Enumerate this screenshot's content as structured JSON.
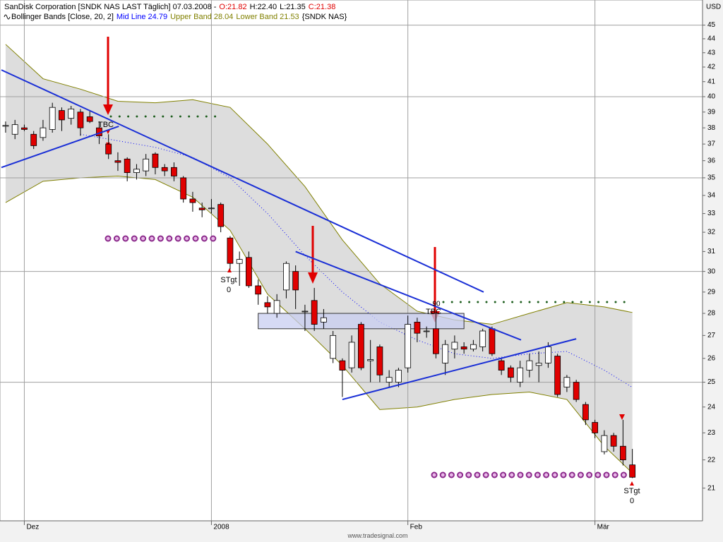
{
  "chart_data": {
    "type": "candlestick",
    "header": [
      {
        "text": "SanDisk Corporation [SNDK NAS LAST Täglich] 07.03.2008 -",
        "color": "#000000"
      },
      {
        "text": "O:21.82",
        "color": "#e00000"
      },
      {
        "text": "H:22.40",
        "color": "#000000"
      },
      {
        "text": "L:21.35",
        "color": "#000000"
      },
      {
        "text": "C:21.38",
        "color": "#e00000"
      }
    ],
    "indicator": [
      {
        "text": "Bollinger Bands [Close, 20, 2]",
        "color": "#000000"
      },
      {
        "text": "Mid Line 24.79",
        "color": "#0000ff"
      },
      {
        "text": "Upper Band 28.04",
        "color": "#808000"
      },
      {
        "text": "Lower Band 21.53",
        "color": "#808000"
      },
      {
        "text": "{SNDK NAS}",
        "color": "#000000"
      }
    ],
    "unit": "USD",
    "footer": "www.tradesignal.com",
    "log_scale": true,
    "ylim": [
      19.9,
      46.9
    ],
    "yticks": [
      21,
      22,
      23,
      24,
      25,
      26,
      27,
      28,
      29,
      30,
      31,
      32,
      33,
      34,
      35,
      36,
      37,
      38,
      39,
      40,
      41,
      42,
      43,
      44,
      45
    ],
    "ygrid": [
      25,
      30,
      35,
      40,
      45
    ],
    "xlim": [
      -0.6,
      74.5
    ],
    "categories": [
      null,
      null,
      "Dez",
      null,
      null,
      null,
      null,
      null,
      null,
      null,
      null,
      null,
      null,
      null,
      null,
      null,
      null,
      null,
      null,
      null,
      null,
      null,
      "2008",
      null,
      null,
      null,
      null,
      null,
      null,
      null,
      null,
      null,
      null,
      null,
      null,
      null,
      null,
      null,
      null,
      null,
      null,
      null,
      null,
      "Feb",
      null,
      null,
      null,
      null,
      null,
      null,
      null,
      null,
      null,
      null,
      null,
      null,
      null,
      null,
      null,
      null,
      null,
      null,
      null,
      "Mär",
      null,
      null,
      null,
      null
    ],
    "open": [
      38.1,
      37.6,
      38.0,
      37.6,
      37.4,
      37.9,
      39.1,
      38.6,
      39.0,
      38.7,
      38.0,
      37.0,
      36.0,
      36.1,
      35.3,
      35.4,
      36.4,
      35.6,
      35.6,
      35.0,
      33.8,
      33.3,
      33.3,
      33.5,
      31.7,
      30.4,
      30.7,
      29.3,
      28.5,
      28.0,
      29.1,
      30.0,
      28.1,
      28.6,
      27.6,
      26.0,
      25.9,
      25.6,
      27.5,
      25.9,
      26.5,
      25.0,
      25.0,
      25.6,
      27.6,
      27.2,
      27.3,
      25.8,
      26.4,
      26.5,
      26.4,
      26.5,
      27.3,
      25.9,
      25.6,
      25.0,
      25.5,
      25.7,
      25.8,
      26.1,
      24.8,
      25.0,
      24.1,
      23.4,
      22.3,
      22.9,
      22.5,
      21.82
    ],
    "high": [
      38.4,
      38.5,
      38.2,
      37.8,
      38.5,
      39.6,
      39.3,
      39.4,
      39.2,
      39.1,
      38.4,
      37.6,
      36.5,
      36.2,
      35.8,
      36.4,
      36.5,
      35.8,
      35.9,
      35.1,
      34.2,
      33.6,
      33.8,
      33.6,
      31.8,
      31.0,
      31.0,
      29.6,
      28.8,
      28.9,
      30.5,
      30.3,
      28.4,
      29.2,
      28.2,
      27.2,
      26.0,
      27.0,
      27.6,
      26.8,
      26.6,
      25.5,
      25.6,
      27.9,
      27.8,
      27.4,
      28.0,
      26.8,
      27.0,
      26.7,
      26.8,
      27.3,
      27.4,
      26.0,
      25.7,
      25.9,
      26.2,
      26.3,
      26.7,
      26.2,
      25.3,
      25.1,
      24.2,
      23.5,
      23.1,
      23.0,
      23.5,
      22.4
    ],
    "low": [
      37.7,
      37.3,
      37.8,
      36.7,
      37.2,
      37.7,
      37.8,
      38.2,
      37.5,
      38.3,
      37.0,
      36.1,
      35.4,
      34.8,
      34.9,
      35.1,
      35.2,
      35.1,
      34.8,
      33.6,
      33.1,
      32.8,
      33.0,
      32.0,
      30.1,
      29.3,
      29.2,
      28.4,
      28.0,
      27.8,
      28.7,
      28.2,
      27.2,
      27.2,
      27.3,
      25.8,
      24.4,
      25.4,
      25.5,
      25.0,
      25.0,
      24.8,
      24.8,
      25.4,
      26.7,
      26.9,
      26.0,
      25.3,
      26.0,
      26.2,
      26.3,
      26.3,
      26.1,
      25.3,
      25.0,
      24.8,
      25.2,
      25.0,
      25.6,
      24.4,
      24.6,
      24.2,
      23.3,
      22.8,
      22.2,
      22.3,
      21.8,
      21.35
    ],
    "close": [
      38.15,
      38.2,
      37.9,
      36.9,
      38.0,
      39.3,
      38.5,
      39.2,
      38.0,
      38.4,
      37.5,
      36.4,
      35.9,
      35.3,
      35.5,
      36.1,
      35.6,
      35.4,
      35.1,
      33.8,
      33.6,
      33.2,
      33.3,
      32.3,
      30.4,
      30.6,
      29.3,
      28.9,
      28.3,
      28.6,
      30.4,
      29.1,
      28.1,
      27.5,
      27.8,
      27.0,
      25.5,
      26.7,
      25.6,
      25.95,
      25.3,
      25.2,
      25.5,
      27.5,
      27.1,
      27.2,
      26.2,
      26.6,
      26.7,
      26.4,
      26.6,
      27.2,
      26.2,
      25.5,
      25.2,
      25.6,
      25.9,
      25.8,
      26.5,
      24.5,
      25.2,
      24.3,
      23.5,
      23.0,
      22.9,
      22.5,
      22.0,
      21.38
    ],
    "up_color": "#ffffff",
    "down_color": "#e00000",
    "bands": {
      "color": "#808000",
      "fill": "#d9d9d9",
      "x": [
        0,
        4,
        8,
        12,
        16,
        20,
        24,
        28,
        32,
        36,
        40,
        44,
        48,
        52,
        56,
        60,
        64,
        67
      ],
      "upper": [
        43.6,
        41.2,
        40.5,
        39.7,
        39.6,
        39.8,
        39.3,
        37.0,
        34.5,
        31.6,
        29.4,
        28.1,
        27.7,
        27.5,
        28.0,
        28.5,
        28.3,
        28.04
      ],
      "lower": [
        33.6,
        34.8,
        35.0,
        35.1,
        34.9,
        33.9,
        32.1,
        28.9,
        27.3,
        25.7,
        23.9,
        24.0,
        24.3,
        24.5,
        24.6,
        24.3,
        22.5,
        21.53
      ]
    },
    "mid": {
      "color": "#0000ff",
      "x": [
        8,
        12,
        16,
        20,
        24,
        28,
        32,
        36,
        40,
        44,
        48,
        52,
        56,
        60,
        64,
        67
      ],
      "values": [
        37.6,
        37.2,
        36.8,
        36.2,
        35.0,
        33.0,
        30.8,
        29.0,
        27.6,
        26.8,
        26.2,
        26.0,
        26.2,
        26.3,
        25.5,
        24.79
      ]
    },
    "trendlines": {
      "color": "#1a2fd6",
      "lines": [
        {
          "x": [
            -0.45,
            51.1
          ],
          "values": [
            41.8,
            29.0
          ]
        },
        {
          "x": [
            -0.45,
            12.1
          ],
          "values": [
            35.6,
            38.1
          ]
        },
        {
          "x": [
            31.0,
            55.1
          ],
          "values": [
            31.0,
            26.8
          ]
        },
        {
          "x": [
            36.0,
            61.0
          ],
          "values": [
            24.3,
            26.85
          ]
        }
      ]
    },
    "zone": {
      "color": "#c8cdf0",
      "x": [
        27.0,
        49.0
      ],
      "values": [
        28.0,
        27.3
      ]
    },
    "annotations": [
      "TBC",
      "TBC",
      "90",
      "STgt",
      "0",
      "STgt",
      "0"
    ]
  }
}
